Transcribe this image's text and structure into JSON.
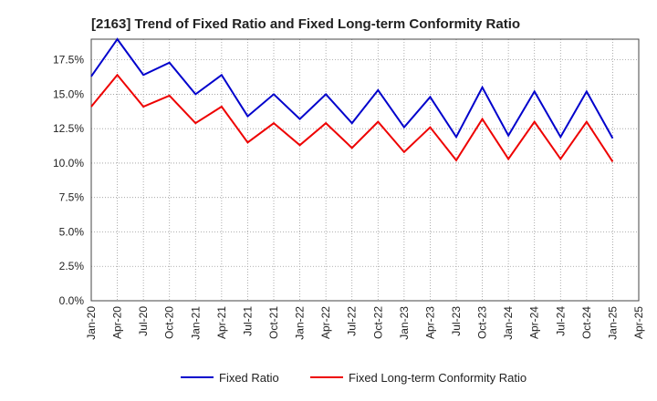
{
  "chart_data": {
    "type": "line",
    "title": "[2163]  Trend of Fixed Ratio and Fixed Long-term Conformity Ratio",
    "xlabel": "",
    "ylabel": "",
    "x_ticks": [
      "Jan-20",
      "Apr-20",
      "Jul-20",
      "Oct-20",
      "Jan-21",
      "Apr-21",
      "Jul-21",
      "Oct-21",
      "Jan-22",
      "Apr-22",
      "Jul-22",
      "Oct-22",
      "Jan-23",
      "Apr-23",
      "Jul-23",
      "Oct-23",
      "Jan-24",
      "Apr-24",
      "Jul-24",
      "Oct-24",
      "Jan-25",
      "Apr-25"
    ],
    "y_ticks": [
      "0.0%",
      "2.5%",
      "5.0%",
      "7.5%",
      "10.0%",
      "12.5%",
      "15.0%",
      "17.5%"
    ],
    "ylim": [
      0,
      19
    ],
    "grid": true,
    "legend_position": "bottom",
    "categories": [
      "Jan-20",
      "Apr-20",
      "Jul-20",
      "Oct-20",
      "Jan-21",
      "Apr-21",
      "Jul-21",
      "Oct-21",
      "Jan-22",
      "Apr-22",
      "Jul-22",
      "Oct-22",
      "Jan-23",
      "Apr-23",
      "Jul-23",
      "Oct-23",
      "Jan-24",
      "Apr-24",
      "Jul-24",
      "Oct-24",
      "Jan-25"
    ],
    "series": [
      {
        "name": "Fixed Ratio",
        "color": "#0000cc",
        "values": [
          16.3,
          19.0,
          16.4,
          17.3,
          15.0,
          16.4,
          13.4,
          15.0,
          13.2,
          15.0,
          12.9,
          15.3,
          12.6,
          14.8,
          11.9,
          15.5,
          12.0,
          15.2,
          11.9,
          15.2,
          11.8
        ]
      },
      {
        "name": "Fixed Long-term Conformity Ratio",
        "color": "#ee0000",
        "values": [
          14.1,
          16.4,
          14.1,
          14.9,
          12.9,
          14.1,
          11.5,
          12.9,
          11.3,
          12.9,
          11.1,
          13.0,
          10.8,
          12.6,
          10.2,
          13.2,
          10.3,
          13.0,
          10.3,
          13.0,
          10.1
        ]
      }
    ]
  }
}
